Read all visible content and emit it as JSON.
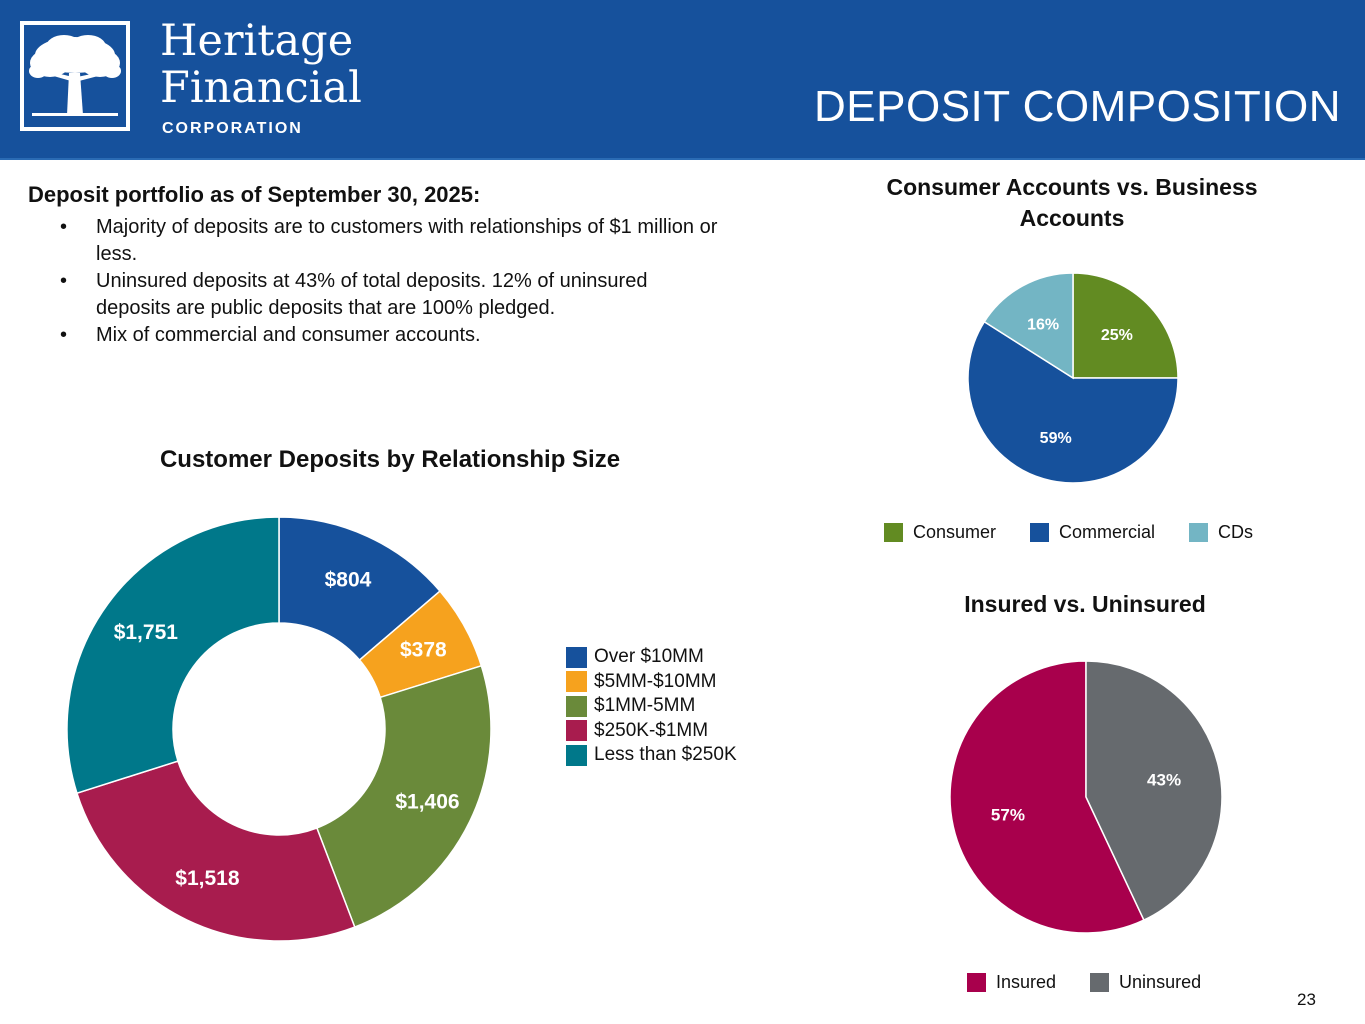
{
  "header": {
    "logo_line1": "Heritage",
    "logo_line2": "Financial",
    "logo_line3": "CORPORATION",
    "logo_icon": "oak-tree-icon",
    "title": "DEPOSIT COMPOSITION",
    "background_color": "#16519c"
  },
  "intro": {
    "heading": "Deposit portfolio as of September 30, 2025:",
    "bullets": [
      "Majority of deposits are to customers with relationships of $1 million or less.",
      "Uninsured deposits at 43% of total deposits. 12% of uninsured deposits are public deposits that are 100% pledged.",
      "Mix of commercial and consumer accounts."
    ]
  },
  "page_number": "23",
  "chart_data": [
    {
      "type": "pie",
      "variant": "donut",
      "title": "Customer Deposits by Relationship Size",
      "legend_position": "right",
      "slices": [
        {
          "label": "Over $10MM",
          "value": 804,
          "display": "$804",
          "color": "#16519c"
        },
        {
          "label": "$5MM-$10MM",
          "value": 378,
          "display": "$378",
          "color": "#f6a21e"
        },
        {
          "label": "$1MM-5MM",
          "value": 1406,
          "display": "$1,406",
          "color": "#6a8a3a"
        },
        {
          "label": "$250K-$1MM",
          "value": 1518,
          "display": "$1,518",
          "color": "#a81c4e"
        },
        {
          "label": "Less than $250K",
          "value": 1751,
          "display": "$1,751",
          "color": "#00788a"
        }
      ]
    },
    {
      "type": "pie",
      "title": "Consumer Accounts vs. Business Accounts",
      "legend_position": "bottom",
      "slices": [
        {
          "label": "Consumer",
          "value": 25,
          "display": "25%",
          "color": "#628b22"
        },
        {
          "label": "Commercial",
          "value": 59,
          "display": "59%",
          "color": "#16519c"
        },
        {
          "label": "CDs",
          "value": 16,
          "display": "16%",
          "color": "#73b5c4"
        }
      ]
    },
    {
      "type": "pie",
      "title": "Insured vs. Uninsured",
      "legend_position": "bottom",
      "slices": [
        {
          "label": "Insured",
          "value": 57,
          "display": "57%",
          "color": "#a8004c"
        },
        {
          "label": "Uninsured",
          "value": 43,
          "display": "43%",
          "color": "#666a6e"
        }
      ]
    }
  ]
}
